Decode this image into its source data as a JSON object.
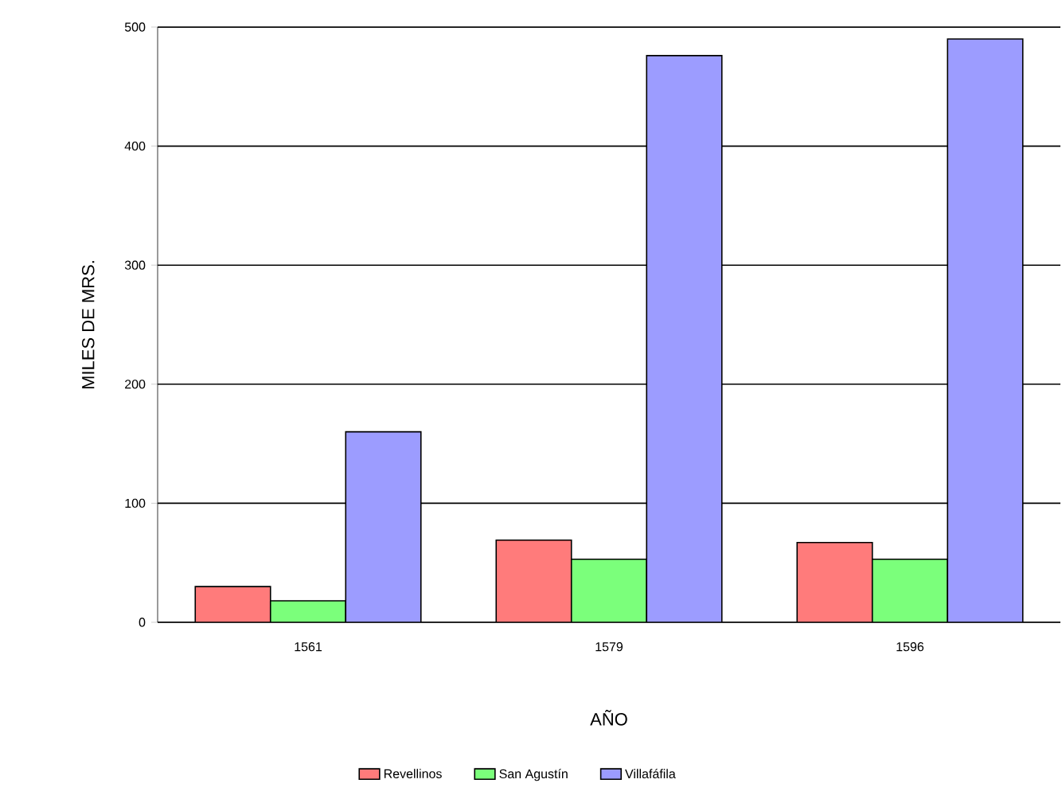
{
  "chart_data": {
    "type": "bar",
    "xlabel": "AÑO",
    "ylabel": "MILES DE MRS.",
    "categories": [
      "1561",
      "1579",
      "1596"
    ],
    "series": [
      {
        "name": "Revellinos",
        "color": "#ff7b7b",
        "values": [
          30,
          69,
          67
        ]
      },
      {
        "name": "San Agustín",
        "color": "#7bff7b",
        "values": [
          18,
          53,
          53
        ]
      },
      {
        "name": "Villafáfila",
        "color": "#9c9cff",
        "values": [
          160,
          476,
          490
        ]
      }
    ],
    "ylim": [
      0,
      500
    ],
    "yticks": [
      0,
      100,
      200,
      300,
      400,
      500
    ],
    "grid": "y",
    "legend": "bottom"
  }
}
